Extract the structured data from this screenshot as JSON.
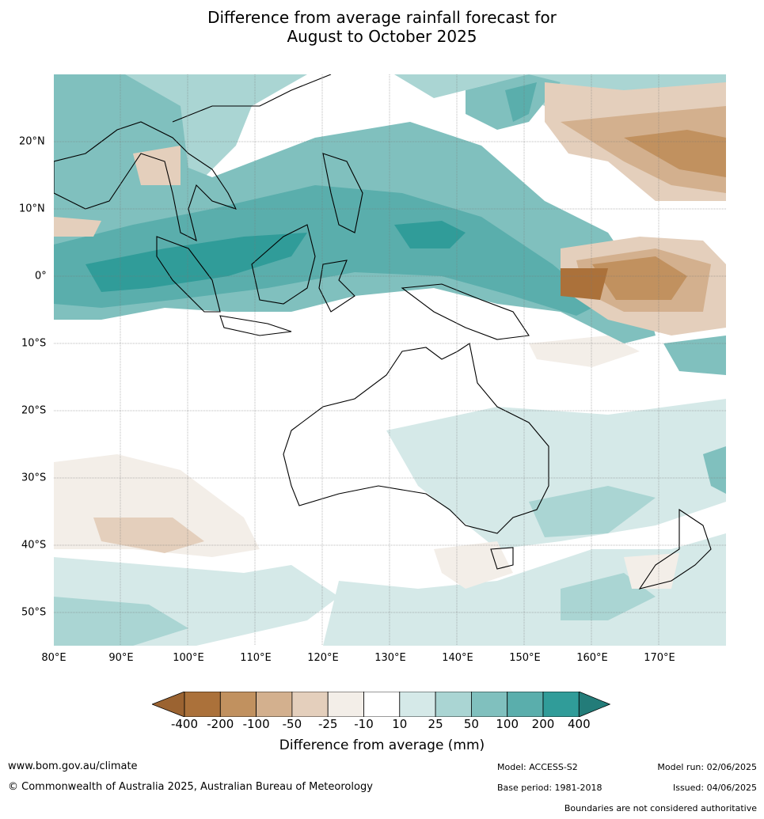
{
  "title": {
    "line1": "Difference from average rainfall forecast for",
    "line2": "August to October 2025"
  },
  "axes": {
    "latitude_labels": [
      "20°N",
      "10°N",
      "0°",
      "10°S",
      "20°S",
      "30°S",
      "40°S",
      "50°S"
    ],
    "longitude_labels": [
      "80°E",
      "90°E",
      "100°E",
      "110°E",
      "120°E",
      "130°E",
      "140°E",
      "150°E",
      "160°E",
      "170°E"
    ]
  },
  "legend": {
    "title": "Difference from average (mm)",
    "tick_labels": [
      "-400",
      "-200",
      "-100",
      "-50",
      "-25",
      "-10",
      "10",
      "25",
      "50",
      "100",
      "200",
      "400"
    ],
    "colors": [
      "#9b6331",
      "#ab713a",
      "#c1915f",
      "#d3b08e",
      "#e4cfbc",
      "#f3eee8",
      "#ffffff",
      "#d5e9e8",
      "#aad5d3",
      "#80c0be",
      "#5aaeac",
      "#309c99",
      "#237c79"
    ]
  },
  "footer": {
    "website": "www.bom.gov.au/climate",
    "copyright": "© Commonwealth of Australia 2025, Australian Bureau of Meteorology",
    "model": "Model: ACCESS-S2",
    "base_period": "Base period: 1981-2018",
    "model_run": "Model run: 02/06/2025",
    "issued": "Issued: 04/06/2025",
    "disclaimer": "Boundaries are not considered authoritative"
  }
}
